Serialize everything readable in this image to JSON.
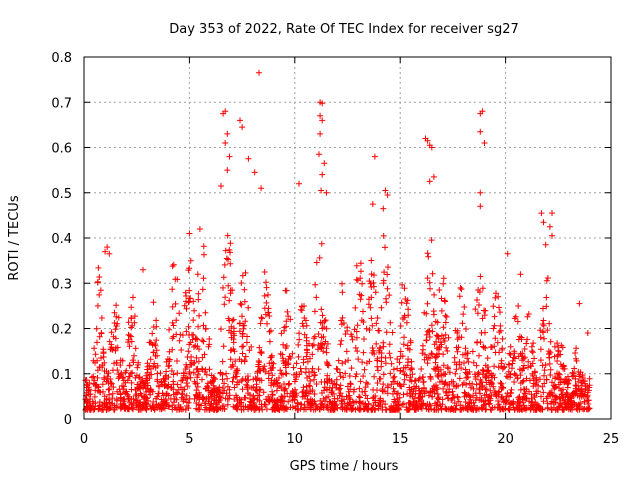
{
  "chart_data": {
    "type": "scatter",
    "title": "Day 353 of 2022, Rate Of TEC Index for receiver sg27",
    "xlabel": "GPS time / hours",
    "ylabel": "ROTI / TECUs",
    "xlim": [
      0,
      25
    ],
    "ylim": [
      0,
      0.8
    ],
    "xticks": [
      "0",
      "5",
      "10",
      "15",
      "20",
      "25"
    ],
    "yticks": [
      "0",
      "0.1",
      "0.2",
      "0.3",
      "0.4",
      "0.5",
      "0.6",
      "0.7",
      "0.8"
    ],
    "grid": true,
    "marker": "+",
    "color": "#ff0000",
    "series": [
      {
        "points": [
          [
            8.3,
            0.765
          ],
          [
            6.6,
            0.675
          ],
          [
            6.7,
            0.68
          ],
          [
            7.4,
            0.66
          ],
          [
            7.5,
            0.645
          ],
          [
            6.8,
            0.63
          ],
          [
            6.7,
            0.61
          ],
          [
            6.9,
            0.58
          ],
          [
            7.8,
            0.575
          ],
          [
            6.8,
            0.55
          ],
          [
            8.1,
            0.545
          ],
          [
            6.5,
            0.515
          ],
          [
            8.4,
            0.51
          ],
          [
            11.2,
            0.7
          ],
          [
            11.3,
            0.698
          ],
          [
            11.2,
            0.67
          ],
          [
            11.3,
            0.66
          ],
          [
            11.2,
            0.63
          ],
          [
            11.15,
            0.585
          ],
          [
            11.4,
            0.565
          ],
          [
            11.3,
            0.54
          ],
          [
            11.25,
            0.505
          ],
          [
            11.5,
            0.5
          ],
          [
            10.2,
            0.52
          ],
          [
            13.8,
            0.58
          ],
          [
            14.3,
            0.505
          ],
          [
            14.4,
            0.495
          ],
          [
            13.7,
            0.475
          ],
          [
            14.2,
            0.465
          ],
          [
            16.2,
            0.62
          ],
          [
            16.3,
            0.615
          ],
          [
            16.4,
            0.605
          ],
          [
            16.5,
            0.6
          ],
          [
            16.6,
            0.535
          ],
          [
            16.4,
            0.525
          ],
          [
            18.8,
            0.675
          ],
          [
            18.9,
            0.68
          ],
          [
            18.8,
            0.635
          ],
          [
            19.0,
            0.61
          ],
          [
            18.8,
            0.5
          ],
          [
            18.8,
            0.47
          ],
          [
            21.7,
            0.455
          ],
          [
            22.2,
            0.455
          ],
          [
            21.8,
            0.435
          ],
          [
            22.1,
            0.425
          ],
          [
            22.2,
            0.405
          ],
          [
            21.9,
            0.385
          ],
          [
            1.1,
            0.38
          ],
          [
            1.0,
            0.37
          ],
          [
            1.2,
            0.365
          ],
          [
            2.8,
            0.33
          ],
          [
            5.0,
            0.41
          ],
          [
            5.5,
            0.42
          ],
          [
            20.1,
            0.365
          ],
          [
            20.7,
            0.32
          ],
          [
            23.9,
            0.19
          ],
          [
            23.5,
            0.255
          ]
        ]
      }
    ]
  }
}
